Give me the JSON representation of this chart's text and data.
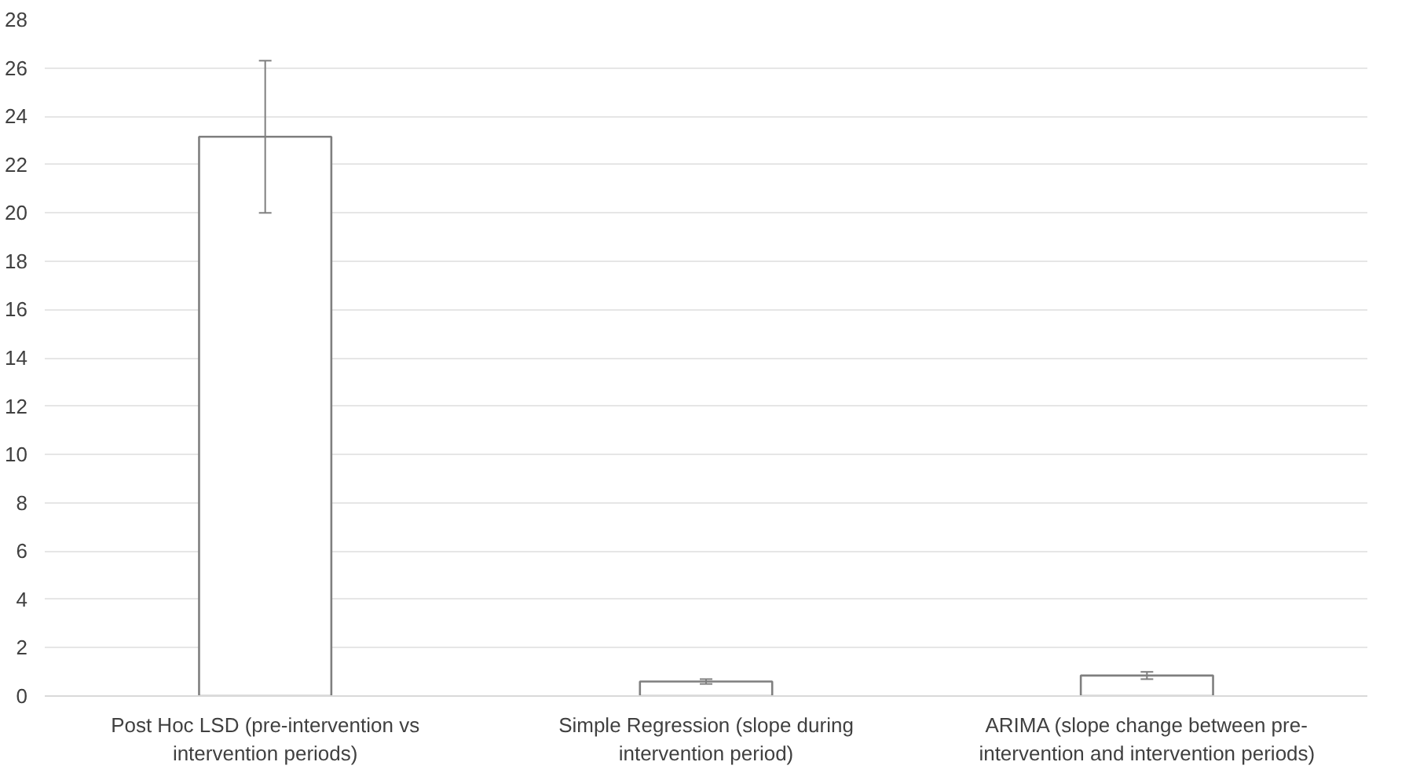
{
  "chart_data": {
    "type": "bar",
    "categories": [
      "Post Hoc LSD (pre-intervention vs intervention periods)",
      "Simple Regression (slope during intervention period)",
      "ARIMA (slope change between pre-intervention and intervention periods)"
    ],
    "values": [
      23.15,
      0.6,
      0.85
    ],
    "errors": [
      [
        20.0,
        26.3
      ],
      [
        0.5,
        0.7
      ],
      [
        0.7,
        1.0
      ]
    ],
    "color": "#ffffff",
    "ylim": [
      0,
      28
    ],
    "yticks": [
      0,
      2,
      4,
      6,
      8,
      10,
      12,
      14,
      16,
      18,
      20,
      22,
      24,
      26,
      28
    ],
    "grid": "y"
  }
}
